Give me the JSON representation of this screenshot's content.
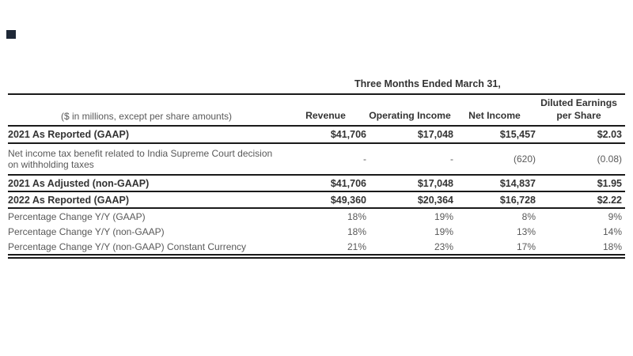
{
  "marker": {
    "color": "#1e2837"
  },
  "table": {
    "caption": "Three Months Ended March 31,",
    "headers": {
      "label": "($ in millions, except per share amounts)",
      "revenue": "Revenue",
      "operating_income": "Operating Income",
      "net_income": "Net Income",
      "eps_line1": "Diluted Earnings",
      "eps_line2": "per Share"
    },
    "rows": [
      {
        "label": "2021 As Reported (GAAP)",
        "style": "bold",
        "values": [
          "$41,706",
          "$17,048",
          "$15,457",
          "$2.03"
        ]
      },
      {
        "label_line1": "Net income tax benefit related to India Supreme Court decision",
        "label_line2": "on withholding taxes",
        "style": "regular",
        "values": [
          "-",
          "-",
          "(620)",
          "(0.08)"
        ]
      },
      {
        "label": "2021 As Adjusted (non-GAAP)",
        "style": "bold",
        "values": [
          "$41,706",
          "$17,048",
          "$14,837",
          "$1.95"
        ]
      },
      {
        "label": "2022 As Reported (GAAP)",
        "style": "bold",
        "values": [
          "$49,360",
          "$20,364",
          "$16,728",
          "$2.22"
        ]
      },
      {
        "label": "Percentage Change Y/Y (GAAP)",
        "style": "regular",
        "values": [
          "18%",
          "19%",
          "8%",
          "9%"
        ]
      },
      {
        "label": "Percentage Change Y/Y (non-GAAP)",
        "style": "regular",
        "values": [
          "18%",
          "19%",
          "13%",
          "14%"
        ]
      },
      {
        "label": "Percentage Change Y/Y (non-GAAP) Constant Currency",
        "style": "regular",
        "values": [
          "21%",
          "23%",
          "17%",
          "18%"
        ]
      }
    ],
    "colors": {
      "bold_text": "#333333",
      "regular_text": "#595959",
      "rule": "#1a1a1a",
      "background": "#ffffff"
    }
  }
}
